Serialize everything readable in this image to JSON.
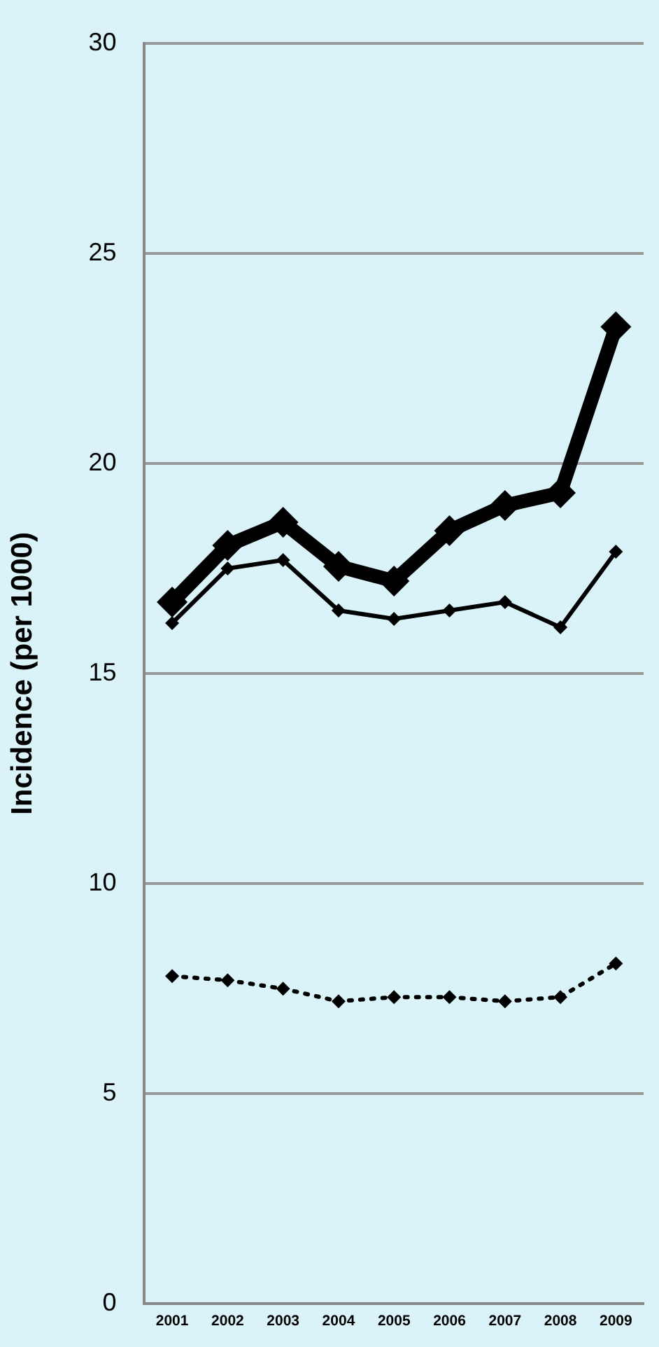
{
  "chart_data": {
    "type": "line",
    "ylabel": "Incidence (per 1000)",
    "categories": [
      "2001",
      "2002",
      "2003",
      "2004",
      "2005",
      "2006",
      "2007",
      "2008",
      "2009"
    ],
    "series": [
      {
        "color": "#000000",
        "line_style": "solid",
        "values": [
          16.7,
          18.05,
          18.6,
          17.55,
          17.2,
          18.4,
          19.0,
          19.3,
          23.25
        ]
      },
      {
        "color": "#000000",
        "line_style": "solid",
        "values": [
          16.2,
          17.5,
          17.7,
          16.5,
          16.3,
          16.5,
          16.7,
          16.1,
          17.9
        ]
      },
      {
        "color": "#000000",
        "line_style": "dotted",
        "values": [
          7.8,
          7.7,
          7.5,
          7.2,
          7.3,
          7.3,
          7.2,
          7.3,
          8.1
        ]
      }
    ],
    "ylim": [
      0,
      30
    ],
    "yticks": [
      0,
      5,
      10,
      15,
      20,
      25,
      30
    ],
    "grid": "y",
    "marker": "diamond"
  }
}
